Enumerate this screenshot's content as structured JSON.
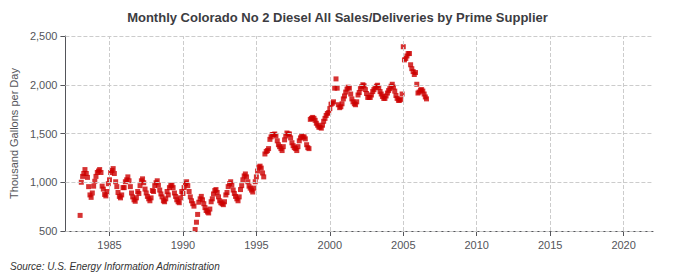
{
  "chart_data": {
    "type": "scatter",
    "title": "Monthly Colorado No 2 Diesel All Sales/Deliveries by Prime Supplier",
    "ylabel": "Thousand Gallons per Day",
    "annotations": [
      "Source: U.S. Energy Information Administration"
    ],
    "color": "#CC0000",
    "marker": "square",
    "grid": true,
    "xlim": [
      1982,
      2022
    ],
    "ylim": [
      500,
      2500
    ],
    "xticks": [
      1985,
      1990,
      1995,
      2000,
      2005,
      2010,
      2015,
      2020
    ],
    "yticks": [
      500,
      {
        "value": 1000,
        "label": "1,000"
      },
      {
        "value": 1500,
        "label": "1,500"
      },
      {
        "value": 2000,
        "label": "2,000"
      },
      {
        "value": 2500,
        "label": "2,500"
      }
    ],
    "x": [
      1983.0,
      1983.08,
      1983.17,
      1983.25,
      1983.33,
      1983.42,
      1983.5,
      1983.58,
      1983.67,
      1983.75,
      1983.83,
      1983.92,
      1984.0,
      1984.08,
      1984.17,
      1984.25,
      1984.33,
      1984.42,
      1984.5,
      1984.58,
      1984.67,
      1984.75,
      1984.83,
      1984.92,
      1985.0,
      1985.08,
      1985.17,
      1985.25,
      1985.33,
      1985.42,
      1985.5,
      1985.58,
      1985.67,
      1985.75,
      1985.83,
      1985.92,
      1986.0,
      1986.08,
      1986.17,
      1986.25,
      1986.33,
      1986.42,
      1986.5,
      1986.58,
      1986.67,
      1986.75,
      1986.83,
      1986.92,
      1987.0,
      1987.08,
      1987.17,
      1987.25,
      1987.33,
      1987.42,
      1987.5,
      1987.58,
      1987.67,
      1987.75,
      1987.83,
      1987.92,
      1988.0,
      1988.08,
      1988.17,
      1988.25,
      1988.33,
      1988.42,
      1988.5,
      1988.58,
      1988.67,
      1988.75,
      1988.83,
      1988.92,
      1989.0,
      1989.08,
      1989.17,
      1989.25,
      1989.33,
      1989.42,
      1989.5,
      1989.58,
      1989.67,
      1989.75,
      1989.83,
      1989.92,
      1990.0,
      1990.08,
      1990.17,
      1990.25,
      1990.33,
      1990.42,
      1990.5,
      1990.58,
      1990.67,
      1990.75,
      1990.83,
      1990.92,
      1991.0,
      1991.08,
      1991.17,
      1991.25,
      1991.33,
      1991.42,
      1991.5,
      1991.58,
      1991.67,
      1991.75,
      1991.83,
      1991.92,
      1992.0,
      1992.08,
      1992.17,
      1992.25,
      1992.33,
      1992.42,
      1992.5,
      1992.58,
      1992.67,
      1992.75,
      1992.83,
      1992.92,
      1993.0,
      1993.08,
      1993.17,
      1993.25,
      1993.33,
      1993.42,
      1993.5,
      1993.58,
      1993.67,
      1993.75,
      1993.83,
      1993.92,
      1994.0,
      1994.08,
      1994.17,
      1994.25,
      1994.33,
      1994.42,
      1994.5,
      1994.58,
      1994.67,
      1994.75,
      1994.83,
      1994.92,
      1995.0,
      1995.08,
      1995.17,
      1995.25,
      1995.33,
      1995.42,
      1995.5,
      1995.58,
      1995.67,
      1995.75,
      1995.83,
      1995.92,
      1996.0,
      1996.08,
      1996.17,
      1996.25,
      1996.33,
      1996.42,
      1996.5,
      1996.58,
      1996.67,
      1996.75,
      1996.83,
      1996.92,
      1997.0,
      1997.08,
      1997.17,
      1997.25,
      1997.33,
      1997.42,
      1997.5,
      1997.58,
      1997.67,
      1997.75,
      1997.83,
      1997.92,
      1998.0,
      1998.08,
      1998.17,
      1998.25,
      1998.33,
      1998.42,
      1998.5,
      1998.58,
      1998.67,
      1998.75,
      1998.83,
      1998.92,
      1999.0,
      1999.08,
      1999.17,
      1999.25,
      1999.33,
      1999.42,
      1999.5,
      1999.58,
      1999.67,
      1999.75,
      1999.83,
      1999.92,
      2000.0,
      2000.08,
      2000.17,
      2000.25,
      2000.33,
      2000.42,
      2000.5,
      2000.58,
      2000.67,
      2000.75,
      2000.83,
      2000.92,
      2001.0,
      2001.08,
      2001.17,
      2001.25,
      2001.33,
      2001.42,
      2001.5,
      2001.58,
      2001.67,
      2001.75,
      2001.83,
      2001.92,
      2002.0,
      2002.08,
      2002.17,
      2002.25,
      2002.33,
      2002.42,
      2002.5,
      2002.58,
      2002.67,
      2002.75,
      2002.83,
      2002.92,
      2003.0,
      2003.08,
      2003.17,
      2003.25,
      2003.33,
      2003.42,
      2003.5,
      2003.58,
      2003.67,
      2003.75,
      2003.83,
      2003.92,
      2004.0,
      2004.08,
      2004.17,
      2004.25,
      2004.33,
      2004.42,
      2004.5,
      2004.58,
      2004.67,
      2004.75,
      2004.83,
      2004.92,
      2005.0,
      2005.08,
      2005.17,
      2005.25,
      2005.33,
      2005.42,
      2005.5,
      2005.58,
      2005.67,
      2005.75,
      2005.83,
      2005.92,
      2006.0,
      2006.08,
      2006.17,
      2006.25,
      2006.33,
      2006.42,
      2006.5,
      2006.58
    ],
    "values": [
      660,
      1000,
      1060,
      1090,
      1130,
      1090,
      1050,
      955,
      870,
      845,
      890,
      960,
      1010,
      1060,
      1100,
      1115,
      1130,
      1100,
      960,
      930,
      875,
      860,
      905,
      985,
      1025,
      1100,
      1120,
      1140,
      1090,
      1005,
      955,
      895,
      855,
      840,
      870,
      945,
      945,
      1005,
      1025,
      1055,
      1015,
      955,
      890,
      850,
      820,
      805,
      840,
      905,
      885,
      965,
      1015,
      1035,
      995,
      930,
      890,
      855,
      830,
      810,
      840,
      915,
      905,
      965,
      995,
      1015,
      970,
      920,
      880,
      850,
      810,
      800,
      830,
      905,
      870,
      945,
      965,
      970,
      945,
      890,
      855,
      820,
      800,
      790,
      840,
      905,
      885,
      945,
      985,
      1005,
      965,
      905,
      850,
      810,
      780,
      755,
      515,
      590,
      670,
      795,
      830,
      855,
      820,
      780,
      740,
      710,
      695,
      685,
      725,
      800,
      830,
      880,
      915,
      925,
      895,
      850,
      810,
      790,
      780,
      770,
      800,
      870,
      895,
      955,
      985,
      1005,
      970,
      920,
      885,
      855,
      830,
      810,
      850,
      925,
      965,
      1025,
      1065,
      1085,
      1055,
      1005,
      960,
      940,
      920,
      900,
      940,
      1005,
      1055,
      1115,
      1155,
      1165,
      1145,
      1095,
      1055,
      1290,
      1315,
      1325,
      1345,
      1440,
      1465,
      1490,
      1490,
      1495,
      1475,
      1425,
      1385,
      1365,
      1345,
      1325,
      1365,
      1435,
      1475,
      1505,
      1495,
      1495,
      1455,
      1405,
      1375,
      1355,
      1345,
      1325,
      1365,
      1425,
      1455,
      1475,
      1465,
      1465,
      1445,
      1385,
      1355,
      1345,
      1645,
      1655,
      1665,
      1655,
      1635,
      1605,
      1585,
      1565,
      1565,
      1555,
      1585,
      1625,
      1655,
      1685,
      1705,
      1715,
      1755,
      1800,
      1810,
      1825,
      1965,
      2060,
      1965,
      1795,
      1765,
      1775,
      1805,
      1855,
      1885,
      1925,
      1955,
      1975,
      1965,
      1905,
      1855,
      1825,
      1805,
      1795,
      1825,
      1895,
      1920,
      1960,
      1980,
      2000,
      1990,
      1950,
      1910,
      1870,
      1870,
      1870,
      1895,
      1930,
      1950,
      1970,
      1985,
      1995,
      1970,
      1930,
      1905,
      1880,
      1860,
      1860,
      1885,
      1915,
      1940,
      1960,
      1985,
      2005,
      1975,
      1935,
      1890,
      1860,
      1840,
      1840,
      1850,
      1905,
      2390,
      2255,
      2270,
      2295,
      2320,
      2320,
      2205,
      2165,
      2135,
      2105,
      2125,
      2005,
      1915,
      1925,
      1945,
      1950,
      1935,
      1905,
      1875,
      1855
    ]
  }
}
